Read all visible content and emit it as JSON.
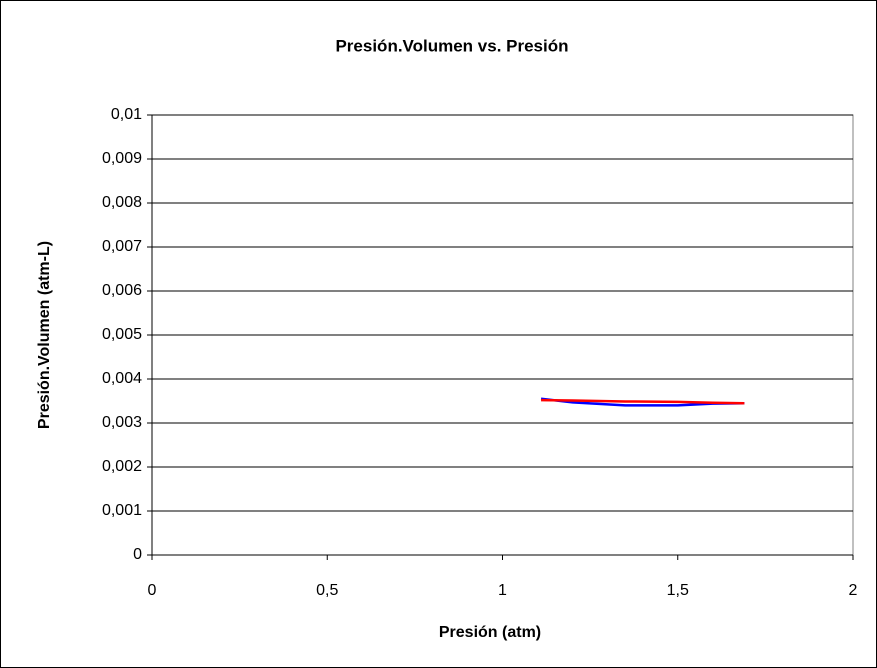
{
  "chart_data": {
    "type": "line",
    "title": "Presión.Volumen vs. Presión",
    "xlabel": "Presión (atm)",
    "ylabel": "Presión.Volumen (atm-L)",
    "x": [
      1.11,
      1.2,
      1.35,
      1.5,
      1.6,
      1.69
    ],
    "series": [
      {
        "color": "#0000ff",
        "values": [
          0.00355,
          0.00347,
          0.0034,
          0.0034,
          0.00344,
          0.00345
        ]
      },
      {
        "color": "#ff0000",
        "values": [
          0.00352,
          0.00351,
          0.00349,
          0.00348,
          0.00346,
          0.00345
        ]
      }
    ],
    "xlim": [
      0,
      2
    ],
    "xticks": [
      0,
      {
        "value": 0.5,
        "label": "0,5"
      },
      1,
      {
        "value": 1.5,
        "label": "1,5"
      },
      2
    ],
    "ylim": [
      0,
      0.01
    ],
    "yticks": [
      0,
      {
        "value": 0.001,
        "label": "0,001"
      },
      {
        "value": 0.002,
        "label": "0,002"
      },
      {
        "value": 0.003,
        "label": "0,003"
      },
      {
        "value": 0.004,
        "label": "0,004"
      },
      {
        "value": 0.005,
        "label": "0,005"
      },
      {
        "value": 0.006,
        "label": "0,006"
      },
      {
        "value": 0.007,
        "label": "0,007"
      },
      {
        "value": 0.008,
        "label": "0,008"
      },
      {
        "value": 0.009,
        "label": "0,009"
      },
      {
        "value": 0.01,
        "label": "0,01"
      }
    ],
    "grid": true
  }
}
